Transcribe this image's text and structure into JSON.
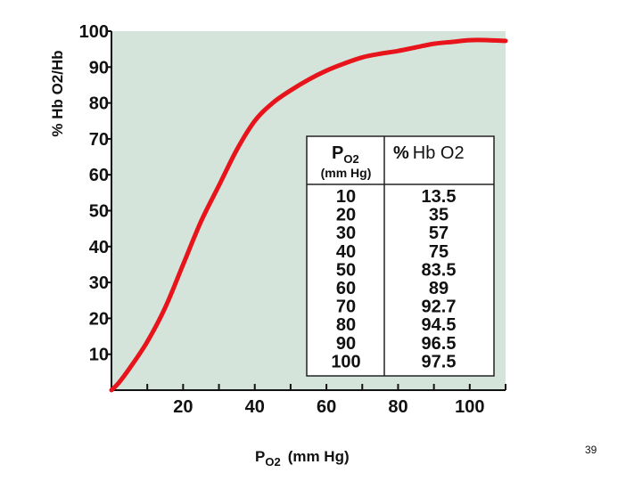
{
  "slide": {
    "page_number": "39"
  },
  "chart_data": {
    "type": "line",
    "ylabel": "% Hb O2/Hb",
    "xlabel": {
      "main": "P",
      "sub": "O2",
      "unit": "(mm Hg)"
    },
    "xlim": [
      0,
      110
    ],
    "ylim": [
      0,
      100
    ],
    "x_ticks": [
      20,
      40,
      60,
      80,
      100
    ],
    "y_ticks": [
      10,
      20,
      30,
      40,
      50,
      60,
      70,
      80,
      90,
      100
    ],
    "grid": false,
    "background_color": "#d4e4da",
    "line_color": "#e8141c",
    "series": [
      {
        "x": [
          0,
          2,
          5,
          10,
          15,
          20,
          25,
          30,
          35,
          40,
          45,
          50,
          55,
          60,
          65,
          70,
          75,
          80,
          85,
          90,
          95,
          100,
          105,
          110
        ],
        "y": [
          0,
          2,
          6,
          13.5,
          23,
          35,
          47,
          57,
          67,
          75,
          80,
          83.5,
          86.5,
          89,
          91,
          92.7,
          93.7,
          94.5,
          95.5,
          96.5,
          97,
          97.5,
          97.5,
          97.3
        ]
      }
    ],
    "table": {
      "header_col1": {
        "main": "P",
        "sub": "O2",
        "unit": "(mm Hg)"
      },
      "header_col2": {
        "symbol": "%",
        "text": "Hb O2"
      },
      "rows": [
        [
          "10",
          "13.5"
        ],
        [
          "20",
          "35"
        ],
        [
          "30",
          "57"
        ],
        [
          "40",
          "75"
        ],
        [
          "50",
          "83.5"
        ],
        [
          "60",
          "89"
        ],
        [
          "70",
          "92.7"
        ],
        [
          "80",
          "94.5"
        ],
        [
          "90",
          "96.5"
        ],
        [
          "100",
          "97.5"
        ]
      ]
    }
  }
}
